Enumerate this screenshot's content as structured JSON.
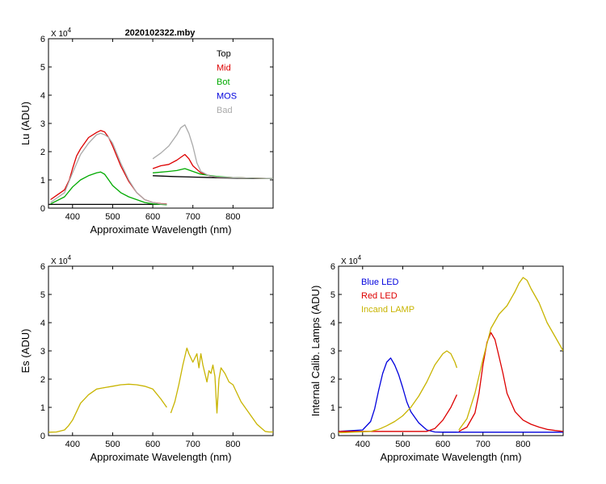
{
  "figure": {
    "title": "2020102322.mby"
  },
  "chart_data": [
    {
      "id": "lu",
      "type": "line",
      "title": "2020102322.mby",
      "xlabel": "Approximate Wavelength (nm)",
      "ylabel": "Lu (ADU)",
      "multiplier_label": "X 10",
      "multiplier_exp": "4",
      "xlim": [
        340,
        900
      ],
      "ylim": [
        0,
        6
      ],
      "xticks": [
        400,
        500,
        600,
        700,
        800
      ],
      "yticks": [
        0,
        1,
        2,
        3,
        4,
        5,
        6
      ],
      "legend_position": "top-right",
      "series": [
        {
          "name": "Top",
          "color": "#000000",
          "segments": [
            {
              "x": [
                340,
                400,
                500,
                600,
                635
              ],
              "y": [
                0.13,
                0.13,
                0.13,
                0.13,
                0.13
              ]
            },
            {
              "x": [
                600,
                650,
                700,
                750,
                800,
                850,
                900
              ],
              "y": [
                1.15,
                1.12,
                1.1,
                1.08,
                1.06,
                1.05,
                1.05
              ]
            }
          ]
        },
        {
          "name": "Mid",
          "color": "#dd0000",
          "segments": [
            {
              "x": [
                345,
                360,
                380,
                392,
                400,
                410,
                420,
                440,
                460,
                470,
                480,
                490,
                500,
                520,
                540,
                560,
                580,
                600,
                620,
                635
              ],
              "y": [
                0.3,
                0.45,
                0.65,
                1.0,
                1.4,
                1.85,
                2.1,
                2.5,
                2.68,
                2.75,
                2.7,
                2.5,
                2.2,
                1.5,
                0.95,
                0.55,
                0.3,
                0.2,
                0.16,
                0.15
              ]
            },
            {
              "x": [
                600,
                620,
                640,
                660,
                670,
                680,
                690,
                700,
                720,
                740,
                760,
                800,
                850,
                900
              ],
              "y": [
                1.4,
                1.5,
                1.55,
                1.7,
                1.8,
                1.9,
                1.75,
                1.5,
                1.25,
                1.15,
                1.1,
                1.08,
                1.06,
                1.05
              ]
            }
          ]
        },
        {
          "name": "Bot",
          "color": "#00aa00",
          "segments": [
            {
              "x": [
                345,
                380,
                400,
                420,
                440,
                460,
                470,
                480,
                490,
                500,
                520,
                540,
                560,
                580,
                600,
                620,
                635
              ],
              "y": [
                0.15,
                0.4,
                0.75,
                1.0,
                1.15,
                1.25,
                1.28,
                1.2,
                1.0,
                0.8,
                0.55,
                0.4,
                0.3,
                0.2,
                0.15,
                0.13,
                0.12
              ]
            },
            {
              "x": [
                600,
                640,
                660,
                680,
                700,
                720,
                760,
                800,
                850,
                900
              ],
              "y": [
                1.25,
                1.3,
                1.33,
                1.4,
                1.3,
                1.2,
                1.12,
                1.08,
                1.06,
                1.05
              ]
            }
          ]
        },
        {
          "name": "MOS",
          "color": "#0000dd",
          "segments": []
        },
        {
          "name": "Bad",
          "color": "#aaaaaa",
          "segments": [
            {
              "x": [
                345,
                380,
                400,
                420,
                440,
                460,
                470,
                480,
                490,
                500,
                520,
                540,
                560,
                580,
                600,
                620,
                635
              ],
              "y": [
                0.2,
                0.55,
                1.25,
                1.9,
                2.3,
                2.6,
                2.65,
                2.6,
                2.5,
                2.3,
                1.6,
                1.0,
                0.55,
                0.3,
                0.2,
                0.15,
                0.14
              ]
            },
            {
              "x": [
                600,
                620,
                640,
                660,
                670,
                680,
                690,
                700,
                710,
                720,
                740,
                760,
                800,
                850,
                900
              ],
              "y": [
                1.75,
                1.95,
                2.2,
                2.6,
                2.85,
                2.95,
                2.65,
                2.2,
                1.6,
                1.3,
                1.15,
                1.1,
                1.08,
                1.06,
                1.05
              ]
            }
          ]
        }
      ]
    },
    {
      "id": "es",
      "type": "line",
      "title": "",
      "xlabel": "Approximate Wavelength (nm)",
      "ylabel": "Es (ADU)",
      "multiplier_label": "X 10",
      "multiplier_exp": "4",
      "xlim": [
        340,
        900
      ],
      "ylim": [
        0,
        6
      ],
      "xticks": [
        400,
        500,
        600,
        700,
        800
      ],
      "yticks": [
        0,
        1,
        2,
        3,
        4,
        5,
        6
      ],
      "series": [
        {
          "name": "Es",
          "color": "#c8b400",
          "segments": [
            {
              "x": [
                340,
                360,
                380,
                390,
                400,
                410,
                420,
                440,
                460,
                480,
                500,
                520,
                540,
                560,
                580,
                600,
                620,
                635
              ],
              "y": [
                0.12,
                0.13,
                0.2,
                0.35,
                0.55,
                0.85,
                1.15,
                1.45,
                1.65,
                1.7,
                1.75,
                1.8,
                1.82,
                1.8,
                1.75,
                1.65,
                1.3,
                1.0
              ]
            },
            {
              "x": [
                645,
                655,
                665,
                675,
                685,
                690,
                700,
                710,
                715,
                720,
                725,
                730,
                735,
                740,
                745,
                750,
                755,
                760,
                765,
                770,
                780,
                790,
                800,
                820,
                840,
                860,
                880,
                890,
                900
              ],
              "y": [
                0.8,
                1.2,
                1.8,
                2.5,
                3.1,
                2.9,
                2.6,
                2.9,
                2.4,
                2.9,
                2.5,
                2.2,
                1.9,
                2.3,
                2.2,
                2.5,
                2.1,
                0.8,
                2.0,
                2.4,
                2.2,
                1.9,
                1.8,
                1.2,
                0.8,
                0.4,
                0.15,
                0.13,
                0.13
              ]
            }
          ]
        }
      ]
    },
    {
      "id": "lamps",
      "type": "line",
      "title": "",
      "xlabel": "Approximate Wavelength (nm)",
      "ylabel": "Internal Calib. Lamps (ADU)",
      "multiplier_label": "X 10",
      "multiplier_exp": "4",
      "xlim": [
        340,
        900
      ],
      "ylim": [
        0,
        6
      ],
      "xticks": [
        400,
        500,
        600,
        700,
        800
      ],
      "yticks": [
        0,
        1,
        2,
        3,
        4,
        5,
        6
      ],
      "legend_position": "top-left",
      "series": [
        {
          "name": "Blue LED",
          "color": "#0000dd",
          "segments": [
            {
              "x": [
                340,
                400,
                420,
                430,
                440,
                450,
                460,
                470,
                480,
                490,
                500,
                510,
                520,
                530,
                540,
                560,
                580,
                600,
                620,
                635
              ],
              "y": [
                0.15,
                0.2,
                0.5,
                0.95,
                1.6,
                2.2,
                2.6,
                2.75,
                2.5,
                2.15,
                1.7,
                1.2,
                0.85,
                0.65,
                0.45,
                0.2,
                0.13,
                0.12,
                0.12,
                0.12
              ]
            },
            {
              "x": [
                600,
                700,
                800,
                900
              ],
              "y": [
                0.12,
                0.12,
                0.12,
                0.12
              ]
            }
          ]
        },
        {
          "name": "Red LED",
          "color": "#dd0000",
          "segments": [
            {
              "x": [
                340,
                500,
                560,
                580,
                600,
                620,
                635
              ],
              "y": [
                0.15,
                0.15,
                0.15,
                0.25,
                0.55,
                1.0,
                1.45
              ]
            },
            {
              "x": [
                640,
                660,
                680,
                690,
                700,
                710,
                720,
                730,
                740,
                750,
                760,
                780,
                800,
                820,
                840,
                860,
                880,
                900
              ],
              "y": [
                0.15,
                0.3,
                0.8,
                1.5,
                2.5,
                3.3,
                3.65,
                3.4,
                2.8,
                2.2,
                1.5,
                0.85,
                0.55,
                0.4,
                0.3,
                0.22,
                0.18,
                0.15
              ]
            }
          ]
        },
        {
          "name": "Incand LAMP",
          "color": "#c8b400",
          "segments": [
            {
              "x": [
                340,
                420,
                440,
                460,
                480,
                500,
                520,
                540,
                560,
                580,
                600,
                610,
                620,
                630,
                635
              ],
              "y": [
                0.1,
                0.15,
                0.22,
                0.35,
                0.5,
                0.7,
                1.0,
                1.4,
                1.9,
                2.5,
                2.9,
                3.0,
                2.9,
                2.6,
                2.4
              ]
            },
            {
              "x": [
                640,
                660,
                680,
                700,
                720,
                740,
                760,
                780,
                790,
                800,
                810,
                820,
                840,
                860,
                880,
                900
              ],
              "y": [
                0.2,
                0.6,
                1.5,
                2.7,
                3.8,
                4.3,
                4.6,
                5.1,
                5.4,
                5.6,
                5.5,
                5.2,
                4.7,
                4.0,
                3.5,
                3.0
              ]
            }
          ]
        }
      ]
    }
  ]
}
